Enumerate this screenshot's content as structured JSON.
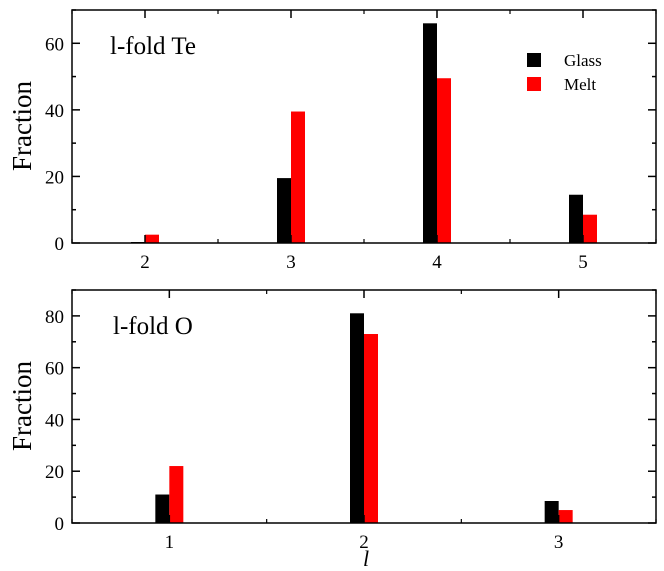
{
  "chart_data": [
    {
      "type": "bar",
      "title": "l-fold Te",
      "xlabel": "",
      "ylabel": "Fraction",
      "categories": [
        "2",
        "3",
        "4",
        "5"
      ],
      "ylim": [
        0,
        70
      ],
      "yticks": [
        0,
        20,
        40,
        60
      ],
      "series": [
        {
          "name": "Glass",
          "color": "#000000",
          "values": [
            0.3,
            19.5,
            66,
            14.5
          ]
        },
        {
          "name": "Melt",
          "color": "#ff0000",
          "values": [
            2.5,
            39.5,
            49.5,
            8.5
          ]
        }
      ],
      "legend": "top-right",
      "grid": false
    },
    {
      "type": "bar",
      "title": "l-fold O",
      "xlabel": "l",
      "ylabel": "Fraction",
      "categories": [
        "1",
        "2",
        "3"
      ],
      "ylim": [
        0,
        90
      ],
      "yticks": [
        0,
        20,
        40,
        60,
        80
      ],
      "series": [
        {
          "name": "Glass",
          "color": "#000000",
          "values": [
            11,
            81,
            8.5
          ]
        },
        {
          "name": "Melt",
          "color": "#ff0000",
          "values": [
            22,
            73,
            5
          ]
        }
      ],
      "grid": false
    }
  ]
}
